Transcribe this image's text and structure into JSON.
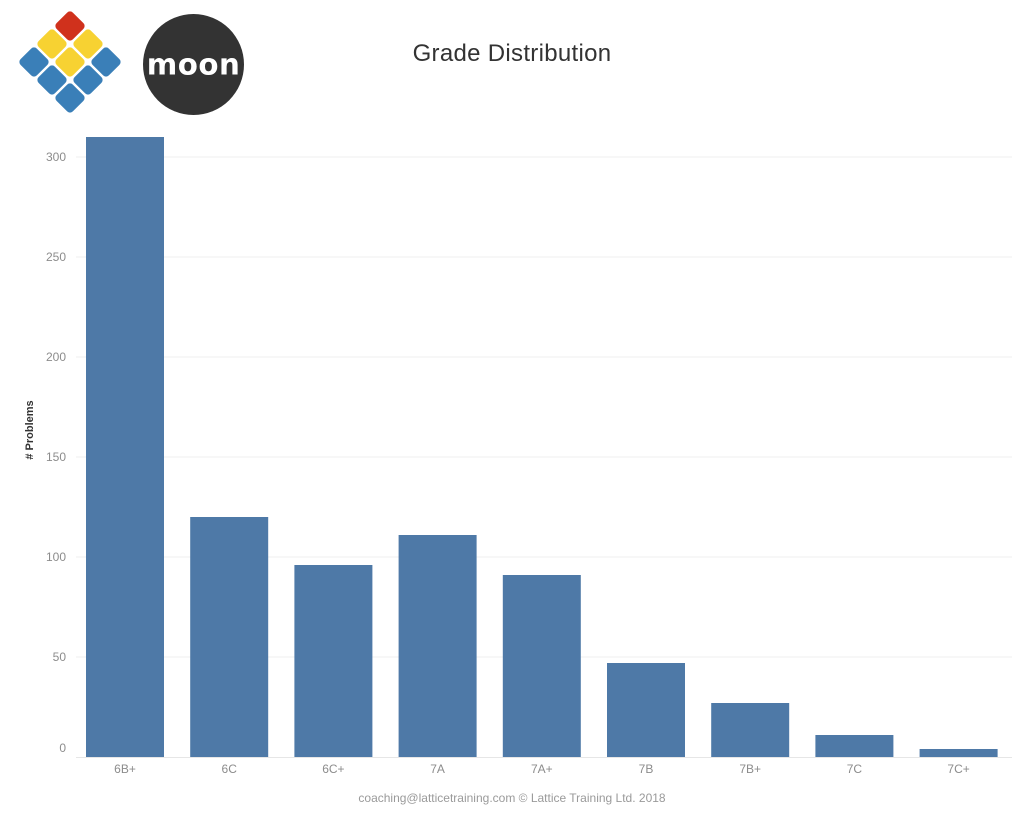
{
  "title": "Grade Distribution",
  "footer": "coaching@latticetraining.com © Lattice Training Ltd. 2018",
  "logos": {
    "lattice": {
      "icon": "lattice-diamond-logo",
      "colors": [
        "#d0311c",
        "#f7d232",
        "#3a7fb8"
      ]
    },
    "moon": {
      "text": "moon",
      "background": "#333333",
      "color": "#ffffff"
    }
  },
  "colors": {
    "bar": "#4e79a7",
    "grid": "#efefef",
    "tick_text": "#8c8c8c",
    "axis_label": "#333333"
  },
  "chart_data": {
    "type": "bar",
    "title": "Grade Distribution",
    "xlabel": "",
    "ylabel": "# Problems",
    "categories": [
      "6B+",
      "6C",
      "6C+",
      "7A",
      "7A+",
      "7B",
      "7B+",
      "7C",
      "7C+"
    ],
    "values": [
      310,
      120,
      96,
      111,
      91,
      47,
      27,
      11,
      4
    ],
    "ylim": [
      0,
      310
    ],
    "yticks": [
      0,
      50,
      100,
      150,
      200,
      250,
      300
    ],
    "grid": true,
    "legend": "none"
  }
}
